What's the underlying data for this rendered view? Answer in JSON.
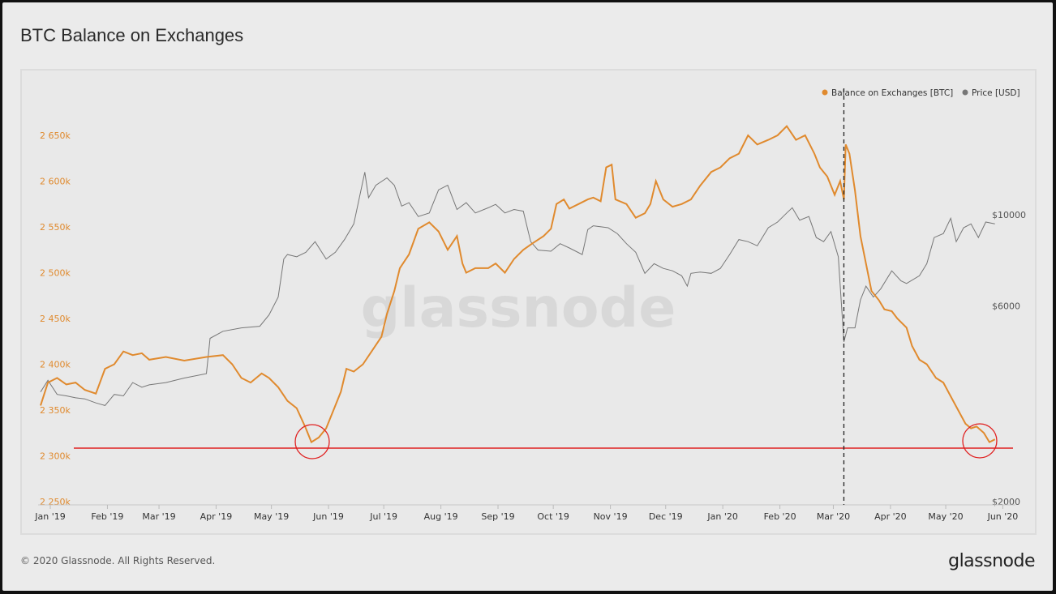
{
  "title": "BTC Balance on Exchanges",
  "footer": "© 2020 Glassnode. All Rights Reserved.",
  "brand": "glassnode",
  "watermark": "glassnode",
  "chart_data": {
    "type": "line",
    "title": "BTC Balance on Exchanges",
    "x_tick_labels": [
      "Jan '19",
      "Feb '19",
      "Mar '19",
      "Apr '19",
      "May '19",
      "Jun '19",
      "Jul '19",
      "Aug '19",
      "Sep '19",
      "Oct '19",
      "Nov '19",
      "Dec '19",
      "Jan '20",
      "Feb '20",
      "Mar '20",
      "Apr '20",
      "May '20",
      "Jun '20"
    ],
    "y_left_ticks": [
      "2 250k",
      "2 300k",
      "2 350k",
      "2 400k",
      "2 450k",
      "2 500k",
      "2 550k",
      "2 600k",
      "2 650k"
    ],
    "y_left_range": [
      2250000,
      2650000
    ],
    "y_right_ticks": [
      "$2000",
      "$6000",
      "$10000"
    ],
    "legend_position": "top-right",
    "colors": {
      "balance": "#e08a2e",
      "price": "#777777",
      "support": "#e02020"
    },
    "series": [
      {
        "name": "Balance on Exchanges [BTC]",
        "axis": "left",
        "points": [
          [
            "2019-01-01",
            2355
          ],
          [
            "2019-01-05",
            2380
          ],
          [
            "2019-01-10",
            2385
          ],
          [
            "2019-01-15",
            2378
          ],
          [
            "2019-01-20",
            2380
          ],
          [
            "2019-01-25",
            2372
          ],
          [
            "2019-01-31",
            2368
          ],
          [
            "2019-02-05",
            2395
          ],
          [
            "2019-02-10",
            2400
          ],
          [
            "2019-02-15",
            2414
          ],
          [
            "2019-02-20",
            2410
          ],
          [
            "2019-02-25",
            2412
          ],
          [
            "2019-03-01",
            2405
          ],
          [
            "2019-03-10",
            2408
          ],
          [
            "2019-03-20",
            2404
          ],
          [
            "2019-04-01",
            2408
          ],
          [
            "2019-04-10",
            2410
          ],
          [
            "2019-04-15",
            2400
          ],
          [
            "2019-04-20",
            2385
          ],
          [
            "2019-04-25",
            2380
          ],
          [
            "2019-05-01",
            2390
          ],
          [
            "2019-05-05",
            2385
          ],
          [
            "2019-05-10",
            2375
          ],
          [
            "2019-05-15",
            2360
          ],
          [
            "2019-05-20",
            2352
          ],
          [
            "2019-05-25",
            2330
          ],
          [
            "2019-05-28",
            2315
          ],
          [
            "2019-06-01",
            2320
          ],
          [
            "2019-06-05",
            2330
          ],
          [
            "2019-06-10",
            2355
          ],
          [
            "2019-06-13",
            2370
          ],
          [
            "2019-06-16",
            2395
          ],
          [
            "2019-06-20",
            2392
          ],
          [
            "2019-06-25",
            2400
          ],
          [
            "2019-06-30",
            2415
          ],
          [
            "2019-07-05",
            2430
          ],
          [
            "2019-07-08",
            2455
          ],
          [
            "2019-07-12",
            2480
          ],
          [
            "2019-07-15",
            2505
          ],
          [
            "2019-07-20",
            2520
          ],
          [
            "2019-07-25",
            2548
          ],
          [
            "2019-07-31",
            2555
          ],
          [
            "2019-08-05",
            2545
          ],
          [
            "2019-08-10",
            2525
          ],
          [
            "2019-08-15",
            2540
          ],
          [
            "2019-08-18",
            2510
          ],
          [
            "2019-08-20",
            2500
          ],
          [
            "2019-08-25",
            2505
          ],
          [
            "2019-09-01",
            2505
          ],
          [
            "2019-09-05",
            2510
          ],
          [
            "2019-09-10",
            2500
          ],
          [
            "2019-09-15",
            2515
          ],
          [
            "2019-09-20",
            2525
          ],
          [
            "2019-09-25",
            2532
          ],
          [
            "2019-10-01",
            2540
          ],
          [
            "2019-10-05",
            2548
          ],
          [
            "2019-10-08",
            2575
          ],
          [
            "2019-10-12",
            2580
          ],
          [
            "2019-10-15",
            2570
          ],
          [
            "2019-10-20",
            2575
          ],
          [
            "2019-10-25",
            2580
          ],
          [
            "2019-10-28",
            2582
          ],
          [
            "2019-11-01",
            2578
          ],
          [
            "2019-11-04",
            2615
          ],
          [
            "2019-11-07",
            2618
          ],
          [
            "2019-11-09",
            2580
          ],
          [
            "2019-11-15",
            2575
          ],
          [
            "2019-11-20",
            2560
          ],
          [
            "2019-11-25",
            2565
          ],
          [
            "2019-11-28",
            2575
          ],
          [
            "2019-12-01",
            2600
          ],
          [
            "2019-12-05",
            2580
          ],
          [
            "2019-12-10",
            2572
          ],
          [
            "2019-12-15",
            2575
          ],
          [
            "2019-12-20",
            2580
          ],
          [
            "2019-12-25",
            2595
          ],
          [
            "2019-12-31",
            2610
          ],
          [
            "2020-01-05",
            2615
          ],
          [
            "2020-01-10",
            2625
          ],
          [
            "2020-01-15",
            2630
          ],
          [
            "2020-01-20",
            2650
          ],
          [
            "2020-01-25",
            2640
          ],
          [
            "2020-01-31",
            2645
          ],
          [
            "2020-02-05",
            2650
          ],
          [
            "2020-02-10",
            2660
          ],
          [
            "2020-02-15",
            2645
          ],
          [
            "2020-02-20",
            2650
          ],
          [
            "2020-02-25",
            2630
          ],
          [
            "2020-02-28",
            2615
          ],
          [
            "2020-03-03",
            2605
          ],
          [
            "2020-03-07",
            2585
          ],
          [
            "2020-03-10",
            2600
          ],
          [
            "2020-03-12",
            2580
          ],
          [
            "2020-03-13",
            2640
          ],
          [
            "2020-03-15",
            2630
          ],
          [
            "2020-03-18",
            2590
          ],
          [
            "2020-03-21",
            2540
          ],
          [
            "2020-03-24",
            2510
          ],
          [
            "2020-03-27",
            2480
          ],
          [
            "2020-03-31",
            2470
          ],
          [
            "2020-04-03",
            2460
          ],
          [
            "2020-04-07",
            2458
          ],
          [
            "2020-04-10",
            2450
          ],
          [
            "2020-04-15",
            2440
          ],
          [
            "2020-04-18",
            2420
          ],
          [
            "2020-04-22",
            2405
          ],
          [
            "2020-04-26",
            2400
          ],
          [
            "2020-05-01",
            2385
          ],
          [
            "2020-05-05",
            2380
          ],
          [
            "2020-05-09",
            2365
          ],
          [
            "2020-05-13",
            2350
          ],
          [
            "2020-05-17",
            2335
          ],
          [
            "2020-05-20",
            2330
          ],
          [
            "2020-05-23",
            2332
          ],
          [
            "2020-05-27",
            2325
          ],
          [
            "2020-05-30",
            2315
          ],
          [
            "2020-06-02",
            2318
          ]
        ]
      },
      {
        "name": "Price [USD]",
        "axis": "right",
        "points": [
          [
            "2019-01-01",
            3700
          ],
          [
            "2019-01-05",
            3950
          ],
          [
            "2019-01-10",
            3650
          ],
          [
            "2019-01-15",
            3620
          ],
          [
            "2019-01-20",
            3580
          ],
          [
            "2019-01-25",
            3560
          ],
          [
            "2019-01-31",
            3480
          ],
          [
            "2019-02-05",
            3430
          ],
          [
            "2019-02-10",
            3650
          ],
          [
            "2019-02-15",
            3620
          ],
          [
            "2019-02-20",
            3900
          ],
          [
            "2019-02-25",
            3800
          ],
          [
            "2019-03-01",
            3850
          ],
          [
            "2019-03-10",
            3900
          ],
          [
            "2019-03-20",
            4000
          ],
          [
            "2019-04-01",
            4100
          ],
          [
            "2019-04-03",
            5000
          ],
          [
            "2019-04-10",
            5200
          ],
          [
            "2019-04-20",
            5300
          ],
          [
            "2019-04-30",
            5350
          ],
          [
            "2019-05-05",
            5700
          ],
          [
            "2019-05-10",
            6300
          ],
          [
            "2019-05-13",
            7800
          ],
          [
            "2019-05-15",
            8000
          ],
          [
            "2019-05-20",
            7900
          ],
          [
            "2019-05-25",
            8100
          ],
          [
            "2019-05-30",
            8600
          ],
          [
            "2019-06-05",
            7800
          ],
          [
            "2019-06-10",
            8100
          ],
          [
            "2019-06-15",
            8700
          ],
          [
            "2019-06-20",
            9500
          ],
          [
            "2019-06-26",
            12700
          ],
          [
            "2019-06-28",
            11000
          ],
          [
            "2019-07-02",
            11800
          ],
          [
            "2019-07-08",
            12300
          ],
          [
            "2019-07-12",
            11800
          ],
          [
            "2019-07-16",
            10500
          ],
          [
            "2019-07-20",
            10700
          ],
          [
            "2019-07-25",
            9900
          ],
          [
            "2019-07-31",
            10100
          ],
          [
            "2019-08-05",
            11500
          ],
          [
            "2019-08-10",
            11800
          ],
          [
            "2019-08-15",
            10300
          ],
          [
            "2019-08-20",
            10700
          ],
          [
            "2019-08-25",
            10100
          ],
          [
            "2019-09-01",
            10400
          ],
          [
            "2019-09-05",
            10600
          ],
          [
            "2019-09-10",
            10100
          ],
          [
            "2019-09-15",
            10300
          ],
          [
            "2019-09-20",
            10200
          ],
          [
            "2019-09-24",
            8600
          ],
          [
            "2019-09-28",
            8200
          ],
          [
            "2019-10-05",
            8150
          ],
          [
            "2019-10-10",
            8500
          ],
          [
            "2019-10-15",
            8300
          ],
          [
            "2019-10-22",
            8000
          ],
          [
            "2019-10-25",
            9200
          ],
          [
            "2019-10-28",
            9400
          ],
          [
            "2019-11-05",
            9300
          ],
          [
            "2019-11-10",
            9000
          ],
          [
            "2019-11-15",
            8500
          ],
          [
            "2019-11-20",
            8100
          ],
          [
            "2019-11-25",
            7200
          ],
          [
            "2019-11-30",
            7600
          ],
          [
            "2019-12-05",
            7400
          ],
          [
            "2019-12-10",
            7300
          ],
          [
            "2019-12-15",
            7100
          ],
          [
            "2019-12-18",
            6700
          ],
          [
            "2019-12-20",
            7200
          ],
          [
            "2019-12-25",
            7250
          ],
          [
            "2019-12-31",
            7200
          ],
          [
            "2020-01-05",
            7400
          ],
          [
            "2020-01-10",
            8000
          ],
          [
            "2020-01-15",
            8700
          ],
          [
            "2020-01-20",
            8600
          ],
          [
            "2020-01-25",
            8400
          ],
          [
            "2020-01-31",
            9300
          ],
          [
            "2020-02-05",
            9600
          ],
          [
            "2020-02-10",
            10100
          ],
          [
            "2020-02-13",
            10400
          ],
          [
            "2020-02-17",
            9700
          ],
          [
            "2020-02-22",
            9900
          ],
          [
            "2020-02-26",
            8800
          ],
          [
            "2020-03-01",
            8600
          ],
          [
            "2020-03-05",
            9100
          ],
          [
            "2020-03-09",
            7900
          ],
          [
            "2020-03-12",
            4900
          ],
          [
            "2020-03-14",
            5300
          ],
          [
            "2020-03-18",
            5300
          ],
          [
            "2020-03-21",
            6200
          ],
          [
            "2020-03-24",
            6700
          ],
          [
            "2020-03-28",
            6300
          ],
          [
            "2020-04-01",
            6600
          ],
          [
            "2020-04-07",
            7300
          ],
          [
            "2020-04-12",
            6900
          ],
          [
            "2020-04-15",
            6800
          ],
          [
            "2020-04-22",
            7100
          ],
          [
            "2020-04-26",
            7600
          ],
          [
            "2020-04-30",
            8800
          ],
          [
            "2020-05-05",
            9000
          ],
          [
            "2020-05-09",
            9800
          ],
          [
            "2020-05-12",
            8600
          ],
          [
            "2020-05-16",
            9300
          ],
          [
            "2020-05-20",
            9500
          ],
          [
            "2020-05-24",
            8800
          ],
          [
            "2020-05-28",
            9600
          ],
          [
            "2020-06-02",
            9500
          ]
        ]
      }
    ],
    "annotations": [
      {
        "type": "horizontal_line",
        "color": "#e02020"
      },
      {
        "type": "vertical_dashed_line",
        "date": "2020-03-12"
      },
      {
        "type": "circle",
        "date": "2019-05-29",
        "value": 2318
      },
      {
        "type": "circle",
        "date": "2020-05-29",
        "value": 2318
      }
    ]
  }
}
